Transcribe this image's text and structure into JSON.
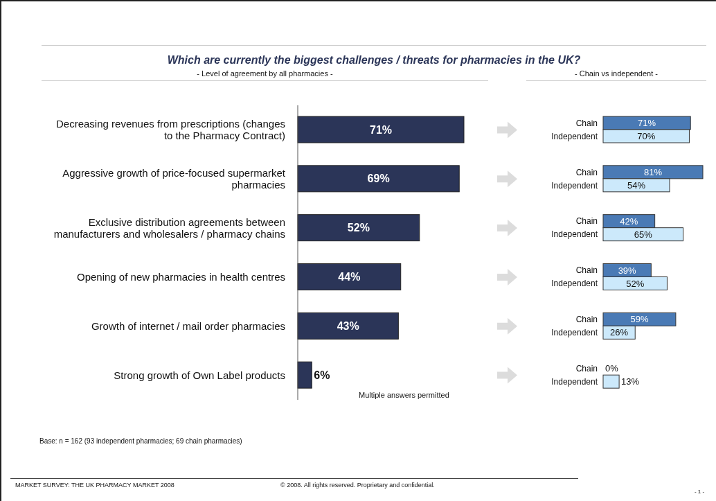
{
  "chart_data": [
    {
      "type": "bar",
      "orientation": "horizontal",
      "title": "Which are currently the biggest challenges / threats for pharmacies in the UK?",
      "subtitle": "- Level of agreement by all pharmacies -",
      "categories": [
        "Decreasing revenues from prescriptions (changes to the Pharmacy Contract)",
        "Aggressive growth of price-focused supermarket pharmacies",
        "Exclusive distribution agreements between manufacturers and wholesalers / pharmacy chains",
        "Opening of new pharmacies in health centres",
        "Growth of internet / mail order pharmacies",
        "Strong growth of Own Label products"
      ],
      "values": [
        71,
        69,
        52,
        44,
        43,
        6
      ],
      "value_labels": [
        "71%",
        "69%",
        "52%",
        "44%",
        "43%",
        "6%"
      ],
      "color": "#2b3558",
      "annotations": [
        "Multiple answers permitted",
        "Base:  n = 162 (93 independent pharmacies; 69 chain pharmacies)",
        "MARKET SURVEY: THE UK PHARMACY MARKET 2008",
        "© 2008. All rights reserved. Proprietary and confidential.",
        "- 1 -"
      ]
    },
    {
      "type": "bar",
      "orientation": "horizontal",
      "subtitle": "- Chain vs independent -",
      "categories": [
        null,
        null,
        null,
        null,
        null,
        null
      ],
      "series": [
        {
          "name": "Chain",
          "color": "#4a7ab5",
          "values": [
            71,
            81,
            42,
            39,
            59,
            0
          ],
          "value_labels": [
            "71%",
            "81%",
            "42%",
            "39%",
            "59%",
            "0%"
          ]
        },
        {
          "name": "Independent",
          "color": "#cce9fb",
          "values": [
            70,
            54,
            65,
            52,
            26,
            13
          ],
          "value_labels": [
            "70%",
            "54%",
            "65%",
            "52%",
            "26%",
            "13%"
          ]
        }
      ]
    }
  ]
}
